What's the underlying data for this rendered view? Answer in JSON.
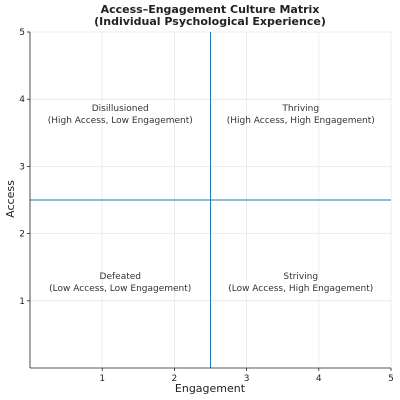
{
  "chart_data": {
    "type": "scatter",
    "title_lines": [
      "Access–Engagement Culture Matrix",
      "(Individual Psychological Experience)"
    ],
    "xlabel": "Engagement",
    "ylabel": "Access",
    "xlim": [
      0,
      5
    ],
    "ylim": [
      0,
      5
    ],
    "xticks": [
      1,
      2,
      3,
      4,
      5
    ],
    "yticks": [
      1,
      2,
      3,
      4,
      5
    ],
    "grid": true,
    "divider_x": 2.5,
    "divider_y": 2.5,
    "divider_color": "#1f77b4",
    "quadrants": [
      {
        "x": 1.25,
        "y": 3.75,
        "label": "Disillusioned",
        "sublabel": "(High Access, Low Engagement)"
      },
      {
        "x": 3.75,
        "y": 3.75,
        "label": "Thriving",
        "sublabel": "(High Access, High Engagement)"
      },
      {
        "x": 1.25,
        "y": 1.25,
        "label": "Defeated",
        "sublabel": "(Low Access, Low Engagement)"
      },
      {
        "x": 3.75,
        "y": 1.25,
        "label": "Striving",
        "sublabel": "(Low Access, High Engagement)"
      }
    ]
  }
}
